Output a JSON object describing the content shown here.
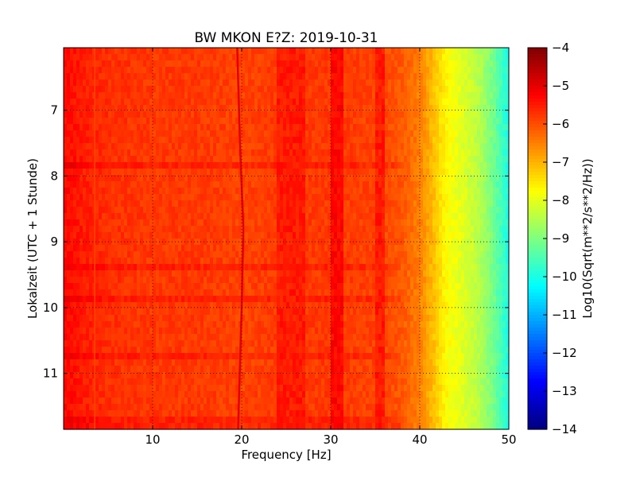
{
  "chart_data": {
    "type": "heatmap",
    "title": "BW MKON E?Z: 2019-10-31",
    "xlabel": "Frequency [Hz]",
    "ylabel": "Lokalzeit (UTC + 1 Stunde)",
    "xlim": [
      0,
      50
    ],
    "ylim": [
      11.85,
      6.05
    ],
    "y_axis_inverted": true,
    "xticks": [
      {
        "value": 10,
        "label": "10"
      },
      {
        "value": 20,
        "label": "20"
      },
      {
        "value": 30,
        "label": "30"
      },
      {
        "value": 40,
        "label": "40"
      },
      {
        "value": 50,
        "label": "50"
      }
    ],
    "yticks": [
      {
        "value": 7,
        "label": "7"
      },
      {
        "value": 8,
        "label": "8"
      },
      {
        "value": 9,
        "label": "9"
      },
      {
        "value": 10,
        "label": "10"
      },
      {
        "value": 11,
        "label": "11"
      }
    ],
    "grid": true,
    "colormap": "jet",
    "colorbar": {
      "label": "Log10(Sqrt(m**2/s**2/Hz))",
      "min": -14,
      "max": -4,
      "ticks": [
        {
          "value": -4,
          "label": "−4"
        },
        {
          "value": -5,
          "label": "−5"
        },
        {
          "value": -6,
          "label": "−6"
        },
        {
          "value": -7,
          "label": "−7"
        },
        {
          "value": -8,
          "label": "−8"
        },
        {
          "value": -9,
          "label": "−9"
        },
        {
          "value": -10,
          "label": "−10"
        },
        {
          "value": -11,
          "label": "−11"
        },
        {
          "value": -12,
          "label": "−12"
        },
        {
          "value": -13,
          "label": "−13"
        },
        {
          "value": -14,
          "label": "−14"
        }
      ]
    },
    "spectral_profile": {
      "frequency_hz": [
        0,
        2,
        5,
        10,
        15,
        20,
        25,
        30,
        35,
        38,
        40,
        41,
        42,
        43,
        44,
        45,
        46,
        47,
        48,
        49,
        50
      ],
      "log10_amplitude": [
        -5.3,
        -5.5,
        -5.7,
        -5.8,
        -5.8,
        -5.9,
        -5.8,
        -5.8,
        -5.9,
        -6.1,
        -6.5,
        -6.9,
        -7.3,
        -7.7,
        -7.9,
        -8.1,
        -8.3,
        -8.6,
        -9.0,
        -9.5,
        -10.0
      ]
    },
    "features": [
      {
        "type": "vertical_line",
        "freq_hz": 3.5,
        "amplitude": -5.0
      },
      {
        "type": "drifting_line",
        "freq_hz": [
          19.5,
          19.8,
          20.2,
          20.0,
          19.6
        ],
        "time_h": [
          6.05,
          7.5,
          8.8,
          10.0,
          11.85
        ],
        "amplitude": -5.0
      },
      {
        "type": "band",
        "freq_hz": [
          24,
          27
        ],
        "amplitude": -5.5
      },
      {
        "type": "band",
        "freq_hz": [
          30,
          31.5
        ],
        "amplitude": -5.3
      },
      {
        "type": "band",
        "freq_hz": [
          35,
          36
        ],
        "amplitude": -5.5
      }
    ]
  }
}
